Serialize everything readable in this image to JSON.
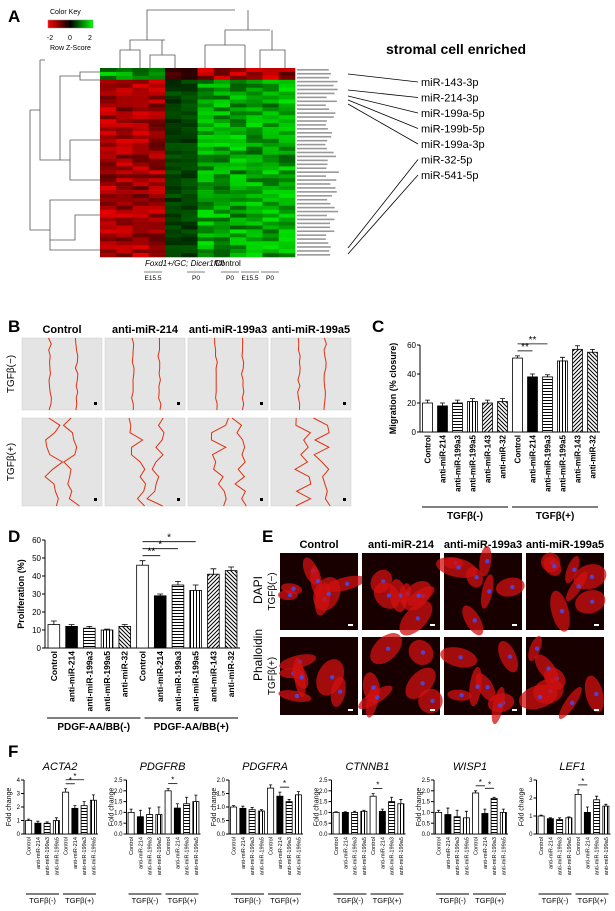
{
  "panel_labels": [
    "A",
    "B",
    "C",
    "D",
    "E",
    "F"
  ],
  "panel_a": {
    "color_key": {
      "title": "Color Key",
      "axis_label": "Row Z-Score",
      "ticks": [
        -2,
        0,
        2
      ]
    },
    "heading": "stromal cell enriched",
    "mirnas": [
      "miR-143-3p",
      "miR-214-3p",
      "miR-199a-5p",
      "miR-199b-5p",
      "miR-199a-3p",
      "miR-32-5p",
      "miR-541-5p"
    ],
    "groups": [
      "Foxd1+/GC; Dicer1fl/fl",
      "Control"
    ],
    "timepoints": [
      "E15.5",
      "P0",
      "P0",
      "E15.5",
      "P0"
    ]
  },
  "panel_b": {
    "columns": [
      "Control",
      "anti-miR-214",
      "anti-miR-199a3",
      "anti-miR-199a5"
    ],
    "rows": [
      "TGFβ(−)",
      "TGFβ(+)"
    ]
  },
  "panel_e": {
    "columns": [
      "Control",
      "anti-miR-214",
      "anti-miR-199a3",
      "anti-miR-199a5"
    ],
    "rows": [
      "TGFβ(−)",
      "TGFβ(+)"
    ],
    "stains": [
      "Phalloidin",
      "DAPI"
    ],
    "stain_colors": [
      "#e00000",
      "#3040ff"
    ]
  },
  "chart_data": [
    {
      "type": "bar",
      "y_label": "Migration (% closure)",
      "categories": [
        "Control",
        "anti-miR-214",
        "anti-miR-199a3",
        "anti-miR-199a5",
        "anti-miR-143",
        "anti-miR-32",
        "Control",
        "anti-miR-214",
        "anti-miR-199a3",
        "anti-miR-199a5",
        "anti-miR-143",
        "anti-miR-32"
      ],
      "values": [
        20,
        18,
        20,
        21,
        20,
        21,
        51,
        38,
        38,
        49,
        57,
        55
      ],
      "errors": [
        2,
        2,
        2,
        2,
        2,
        2,
        1.5,
        2,
        1.5,
        2.5,
        2.5,
        2
      ],
      "fills": [
        "#ffffff",
        "#000000",
        "hstripe",
        "vstripe",
        "diag",
        "diag2",
        "#ffffff",
        "#000000",
        "hstripe",
        "vstripe",
        "diag",
        "diag2"
      ],
      "groups": [
        "TGFβ(-)",
        "TGFβ(+)"
      ],
      "ylim": [
        0,
        60
      ],
      "yticks": [
        0,
        20,
        40,
        60
      ],
      "annotations": [
        {
          "text": "**",
          "span": [
            6,
            7
          ]
        },
        {
          "text": "**",
          "span": [
            6,
            8
          ]
        }
      ]
    },
    {
      "type": "bar",
      "y_label": "Proliferation (%)",
      "categories": [
        "Control",
        "anti-miR-214",
        "anti-miR-199a3",
        "anti-miR-199a5",
        "anti-miR-32",
        "Control",
        "anti-miR-214",
        "anti-miR-199a3",
        "anti-miR-199a5",
        "anti-miR-143",
        "anti-miR-32"
      ],
      "values": [
        13,
        12,
        11,
        10,
        12,
        46,
        29,
        35,
        32,
        41,
        43
      ],
      "errors": [
        2,
        1,
        1,
        0.5,
        1,
        2.5,
        1,
        2,
        3,
        3,
        2
      ],
      "fills": [
        "#ffffff",
        "#000000",
        "hstripe",
        "vstripe",
        "diag2",
        "#ffffff",
        "#000000",
        "hstripe",
        "vstripe",
        "diag",
        "diag2"
      ],
      "groups": [
        "PDGF-AA/BB(-)",
        "PDGF-AA/BB(+)"
      ],
      "ylim": [
        0,
        60
      ],
      "yticks": [
        0,
        10,
        20,
        30,
        40,
        50,
        60
      ],
      "annotations": [
        {
          "text": "**",
          "span": [
            5,
            6
          ]
        },
        {
          "text": "*",
          "span": [
            5,
            7
          ]
        },
        {
          "text": "*",
          "span": [
            5,
            8
          ]
        }
      ]
    },
    {
      "type": "bar",
      "title": "ACTA2",
      "y_label": "Fold change",
      "categories": [
        "Control",
        "anti-miR-214",
        "anti-miR-199a3",
        "anti-miR-199a5",
        "Control",
        "anti-miR-214",
        "anti-miR-199a3",
        "anti-miR-199a5"
      ],
      "values": [
        1,
        0.8,
        0.8,
        1,
        3.1,
        1.9,
        2.1,
        2.5
      ],
      "errors": [
        0.1,
        0.15,
        0.1,
        0.2,
        0.25,
        0.2,
        0.3,
        0.4
      ],
      "fills": [
        "#ffffff",
        "#000000",
        "hstripe",
        "vstripe",
        "#ffffff",
        "#000000",
        "hstripe",
        "vstripe"
      ],
      "groups": [
        "TGFβ(-)",
        "TGFβ(+)"
      ],
      "ylim": [
        0,
        4
      ],
      "yticks": [
        0,
        1,
        2,
        3,
        4
      ],
      "annotations": [
        {
          "text": "*",
          "span": [
            4,
            5
          ]
        },
        {
          "text": "*",
          "span": [
            4,
            6
          ]
        }
      ]
    },
    {
      "type": "bar",
      "title": "PDGFRB",
      "y_label": "Fold change",
      "categories": [
        "Control",
        "anti-miR-214",
        "anti-miR-199a3",
        "anti-miR-199a5",
        "Control",
        "anti-miR-214",
        "anti-miR-199a3",
        "anti-miR-199a5"
      ],
      "values": [
        1,
        0.8,
        0.9,
        0.9,
        2,
        1.2,
        1.4,
        1.5
      ],
      "errors": [
        0.15,
        0.3,
        0.3,
        0.35,
        0.1,
        0.2,
        0.3,
        0.3
      ],
      "fills": [
        "#ffffff",
        "#000000",
        "hstripe",
        "vstripe",
        "#ffffff",
        "#000000",
        "hstripe",
        "vstripe"
      ],
      "groups": [
        "TGFβ(-)",
        "TGFβ(+)"
      ],
      "ylim": [
        0,
        2.5
      ],
      "yticks": [
        {
          "value": 0,
          "label": "0.0"
        },
        {
          "value": 0.5,
          "label": "0.5"
        },
        {
          "value": 1,
          "label": "1.0"
        },
        {
          "value": 1.5,
          "label": "1.5"
        },
        {
          "value": 2,
          "label": "2.0"
        },
        {
          "value": 2.5,
          "label": "2.5"
        }
      ],
      "annotations": [
        {
          "text": "*",
          "span": [
            4,
            5
          ]
        }
      ]
    },
    {
      "type": "bar",
      "title": "PDGFRA",
      "y_label": "Fold change",
      "categories": [
        "Control",
        "anti-miR-214",
        "anti-miR-199a3",
        "anti-miR-199a5",
        "Control",
        "anti-miR-214",
        "anti-miR-199a3",
        "anti-miR-199a5"
      ],
      "values": [
        1,
        0.95,
        0.9,
        0.85,
        1.7,
        1.4,
        1.2,
        1.45
      ],
      "errors": [
        0.05,
        0.08,
        0.08,
        0.05,
        0.12,
        0.15,
        0.08,
        0.12
      ],
      "fills": [
        "#ffffff",
        "#000000",
        "hstripe",
        "vstripe",
        "#ffffff",
        "#000000",
        "hstripe",
        "vstripe"
      ],
      "groups": [
        "TGFβ(-)",
        "TGFβ(+)"
      ],
      "ylim": [
        0,
        2
      ],
      "yticks": [
        {
          "value": 0,
          "label": "0.0"
        },
        {
          "value": 0.5,
          "label": "0.5"
        },
        {
          "value": 1,
          "label": "1.0"
        },
        {
          "value": 1.5,
          "label": "1.5"
        },
        {
          "value": 2,
          "label": "2.0"
        }
      ],
      "annotations": [
        {
          "text": "*",
          "span": [
            5,
            6
          ]
        }
      ]
    },
    {
      "type": "bar",
      "title": "CTNNB1",
      "y_label": "Fold change",
      "categories": [
        "Control",
        "anti-miR-214",
        "anti-miR-199a3",
        "anti-miR-199a5",
        "Control",
        "anti-miR-214",
        "anti-miR-199a3",
        "anti-miR-199a5"
      ],
      "values": [
        1,
        1,
        1,
        1.05,
        1.75,
        1.05,
        1.5,
        1.4
      ],
      "errors": [
        0.03,
        0.03,
        0.05,
        0.05,
        0.12,
        0.1,
        0.2,
        0.2
      ],
      "fills": [
        "#ffffff",
        "#000000",
        "hstripe",
        "vstripe",
        "#ffffff",
        "#000000",
        "hstripe",
        "vstripe"
      ],
      "groups": [
        "TGFβ(-)",
        "TGFβ(+)"
      ],
      "ylim": [
        0,
        2.5
      ],
      "yticks": [
        {
          "value": 0,
          "label": "0.0"
        },
        {
          "value": 0.5,
          "label": "0.5"
        },
        {
          "value": 1,
          "label": "1.0"
        },
        {
          "value": 1.5,
          "label": "1.5"
        },
        {
          "value": 2,
          "label": "2.0"
        },
        {
          "value": 2.5,
          "label": "2.5"
        }
      ],
      "annotations": [
        {
          "text": "*",
          "span": [
            4,
            5
          ]
        }
      ]
    },
    {
      "type": "bar",
      "title": "WISP1",
      "y_label": "Fold change",
      "categories": [
        "Control",
        "anti-miR-214",
        "anti-miR-199a3",
        "anti-miR-199a5",
        "Control",
        "anti-miR-214",
        "anti-miR-199a3",
        "anti-miR-199a5"
      ],
      "values": [
        1,
        0.9,
        0.8,
        0.75,
        1.9,
        0.95,
        1.65,
        1
      ],
      "errors": [
        0.1,
        0.3,
        0.3,
        0.3,
        0.1,
        0.2,
        0.05,
        0.15
      ],
      "fills": [
        "#ffffff",
        "#000000",
        "hstripe",
        "vstripe",
        "#ffffff",
        "#000000",
        "hstripe",
        "vstripe"
      ],
      "groups": [
        "TGFβ(-)",
        "TGFβ(+)"
      ],
      "ylim": [
        0,
        2.5
      ],
      "yticks": [
        {
          "value": 0,
          "label": "0.0"
        },
        {
          "value": 0.5,
          "label": "0.5"
        },
        {
          "value": 1,
          "label": "1.0"
        },
        {
          "value": 1.5,
          "label": "1.5"
        },
        {
          "value": 2,
          "label": "2.0"
        },
        {
          "value": 2.5,
          "label": "2.5"
        }
      ],
      "annotations": [
        {
          "text": "*",
          "span": [
            4,
            5
          ]
        },
        {
          "text": "*",
          "span": [
            5,
            6
          ]
        }
      ]
    },
    {
      "type": "bar",
      "title": "LEF1",
      "y_label": "Fold change",
      "categories": [
        "Control",
        "anti-miR-214",
        "anti-miR-199a3",
        "anti-miR-199a5",
        "Control",
        "anti-miR-214",
        "anti-miR-199a3",
        "anti-miR-199a5"
      ],
      "values": [
        1,
        0.85,
        0.8,
        0.9,
        2.2,
        1.2,
        1.9,
        1.55
      ],
      "errors": [
        0.05,
        0.05,
        0.1,
        0.05,
        0.25,
        0.3,
        0.2,
        0.1
      ],
      "fills": [
        "#ffffff",
        "#000000",
        "hstripe",
        "vstripe",
        "#ffffff",
        "#000000",
        "hstripe",
        "vstripe"
      ],
      "groups": [
        "TGFβ(-)",
        "TGFβ(+)"
      ],
      "ylim": [
        0,
        3
      ],
      "yticks": [
        0,
        1,
        2,
        3
      ],
      "annotations": [
        {
          "text": "*",
          "span": [
            4,
            5
          ]
        }
      ]
    }
  ]
}
